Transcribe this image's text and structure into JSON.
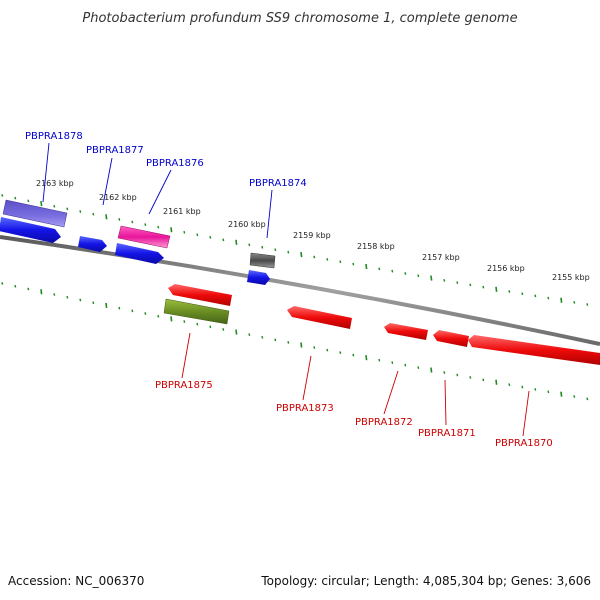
{
  "title": "Photobacterium profundum SS9 chromosome 1, complete genome",
  "footer": {
    "accession": "Accession: NC_006370",
    "topology": "Topology: circular; Length: 4,085,304 bp; Genes: 3,606"
  },
  "colors": {
    "backbone": "#7a7a7a",
    "ticks": "#1f8a1f",
    "forward_label": "#0000cc",
    "reverse_label": "#cc0000"
  },
  "scale": {
    "unit": "kbp",
    "labels": [
      "2163 kbp",
      "2162 kbp",
      "2161 kbp",
      "2160 kbp",
      "2159 kbp",
      "2158 kbp",
      "2157 kbp",
      "2156 kbp",
      "2155 kbp"
    ]
  },
  "genes": {
    "forward": [
      {
        "name": "PBPRA1878",
        "label": "PBPRA1878",
        "color": "#2222dd"
      },
      {
        "name": "PBPRA1877",
        "label": "PBPRA1877",
        "color": "#2222dd"
      },
      {
        "name": "PBPRA1876",
        "label": "PBPRA1876",
        "color": "#2222dd"
      },
      {
        "name": "PBPRA1874",
        "label": "PBPRA1874",
        "color": "#2222dd"
      }
    ],
    "reverse": [
      {
        "name": "PBPRA1875",
        "label": "PBPRA1875",
        "color": "#ee1111"
      },
      {
        "name": "PBPRA1873",
        "label": "PBPRA1873",
        "color": "#ee1111"
      },
      {
        "name": "PBPRA1872",
        "label": "PBPRA1872",
        "color": "#ee1111"
      },
      {
        "name": "PBPRA1871",
        "label": "PBPRA1871",
        "color": "#ee1111"
      },
      {
        "name": "PBPRA1870",
        "label": "PBPRA1870",
        "color": "#ee1111"
      }
    ],
    "features": [
      {
        "name": "feature-purple",
        "color": "#6a5acd"
      },
      {
        "name": "feature-pink",
        "color": "#e8209a"
      },
      {
        "name": "feature-grey",
        "color": "#555555"
      },
      {
        "name": "feature-olive",
        "color": "#6b8e23"
      }
    ]
  }
}
